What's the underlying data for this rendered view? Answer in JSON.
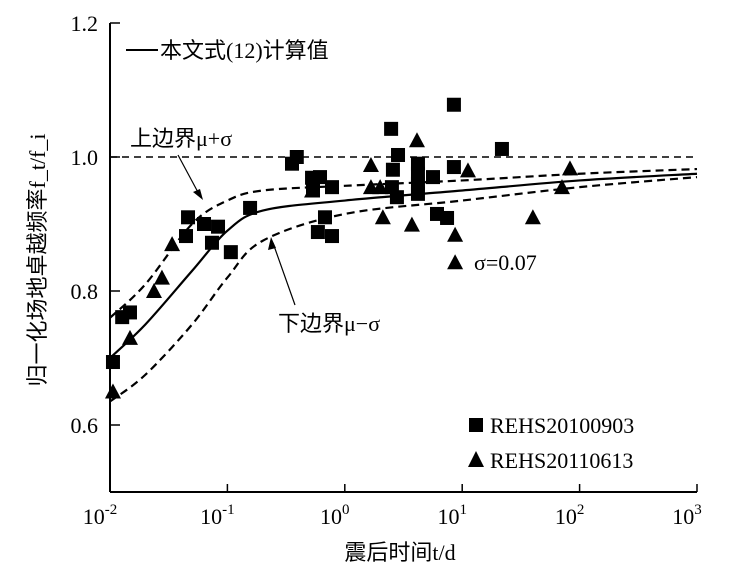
{
  "chart_data": {
    "type": "scatter",
    "xscale": "log",
    "xlim": [
      0.01,
      1000
    ],
    "ylim": [
      0.5,
      1.2
    ],
    "xlabel": "震后时间t/d",
    "ylabel": "归一化场地卓越频率f_t/f_i",
    "xticks": [
      {
        "base": "10",
        "exp": "-2",
        "v": 0.01
      },
      {
        "base": "10",
        "exp": "-1",
        "v": 0.1
      },
      {
        "base": "10",
        "exp": "0",
        "v": 1
      },
      {
        "base": "10",
        "exp": "1",
        "v": 10
      },
      {
        "base": "10",
        "exp": "2",
        "v": 100
      },
      {
        "base": "10",
        "exp": "3",
        "v": 1000
      }
    ],
    "yticks": [
      {
        "label": "0.6",
        "v": 0.6
      },
      {
        "label": "0.8",
        "v": 0.8
      },
      {
        "label": "1.0",
        "v": 1.0
      },
      {
        "label": "1.2",
        "v": 1.2
      }
    ],
    "reference_line": {
      "y": 1.0,
      "style": "dashed"
    },
    "curves": [
      {
        "name": "本文式(12)计算值",
        "style": "solid",
        "x": [
          0.01,
          0.02,
          0.05,
          0.1,
          0.2,
          1,
          10,
          100,
          1000
        ],
        "y": [
          0.7,
          0.75,
          0.83,
          0.89,
          0.92,
          0.935,
          0.95,
          0.965,
          0.975
        ]
      },
      {
        "name": "上边界μ+σ",
        "style": "dashed",
        "x": [
          0.01,
          0.02,
          0.05,
          0.1,
          0.2,
          1,
          10,
          100,
          1000
        ],
        "y": [
          0.76,
          0.81,
          0.9,
          0.935,
          0.95,
          0.957,
          0.965,
          0.975,
          0.982
        ]
      },
      {
        "name": "下边界μ−σ",
        "style": "dashed",
        "x": [
          0.01,
          0.02,
          0.05,
          0.1,
          0.2,
          1,
          10,
          100,
          1000
        ],
        "y": [
          0.635,
          0.675,
          0.75,
          0.82,
          0.875,
          0.915,
          0.935,
          0.955,
          0.97
        ]
      }
    ],
    "series": [
      {
        "name": "REHS20100903",
        "marker": "square",
        "x": [
          0.0106,
          0.0127,
          0.0148,
          0.0444,
          0.0462,
          0.0632,
          0.0739,
          0.0832,
          0.107,
          0.156,
          0.355,
          0.39,
          0.526,
          0.536,
          0.59,
          0.615,
          0.678,
          0.778,
          0.778,
          2.48,
          2.52,
          2.57,
          2.78,
          2.84,
          4.2,
          4.2,
          4.2,
          4.2,
          5.64,
          6.1,
          7.43,
          8.5,
          8.5,
          21.8
        ],
        "y": [
          0.694,
          0.761,
          0.768,
          0.882,
          0.91,
          0.9,
          0.872,
          0.896,
          0.858,
          0.924,
          0.99,
          1.0,
          0.969,
          0.95,
          0.888,
          0.97,
          0.91,
          0.955,
          0.882,
          1.042,
          0.955,
          0.981,
          0.94,
          1.003,
          0.96,
          0.975,
          0.99,
          0.945,
          0.97,
          0.915,
          0.909,
          1.078,
          0.985,
          1.012
        ]
      },
      {
        "name": "REHS20110613",
        "marker": "triangle",
        "x": [
          0.0106,
          0.0148,
          0.0237,
          0.0277,
          0.0338,
          0.526,
          1.67,
          1.67,
          2.0,
          2.11,
          3.73,
          4.12,
          8.7,
          8.7,
          11.2,
          40,
          70.8,
          82.8
        ],
        "y": [
          0.65,
          0.73,
          0.8,
          0.82,
          0.87,
          0.95,
          0.988,
          0.955,
          0.955,
          0.91,
          0.899,
          1.025,
          0.884,
          0.843,
          0.98,
          0.91,
          0.955,
          0.983
        ]
      }
    ],
    "annotations": {
      "upper": "上边界μ+σ",
      "lower": "下边界μ−σ",
      "sigma": "σ=0.07"
    }
  }
}
